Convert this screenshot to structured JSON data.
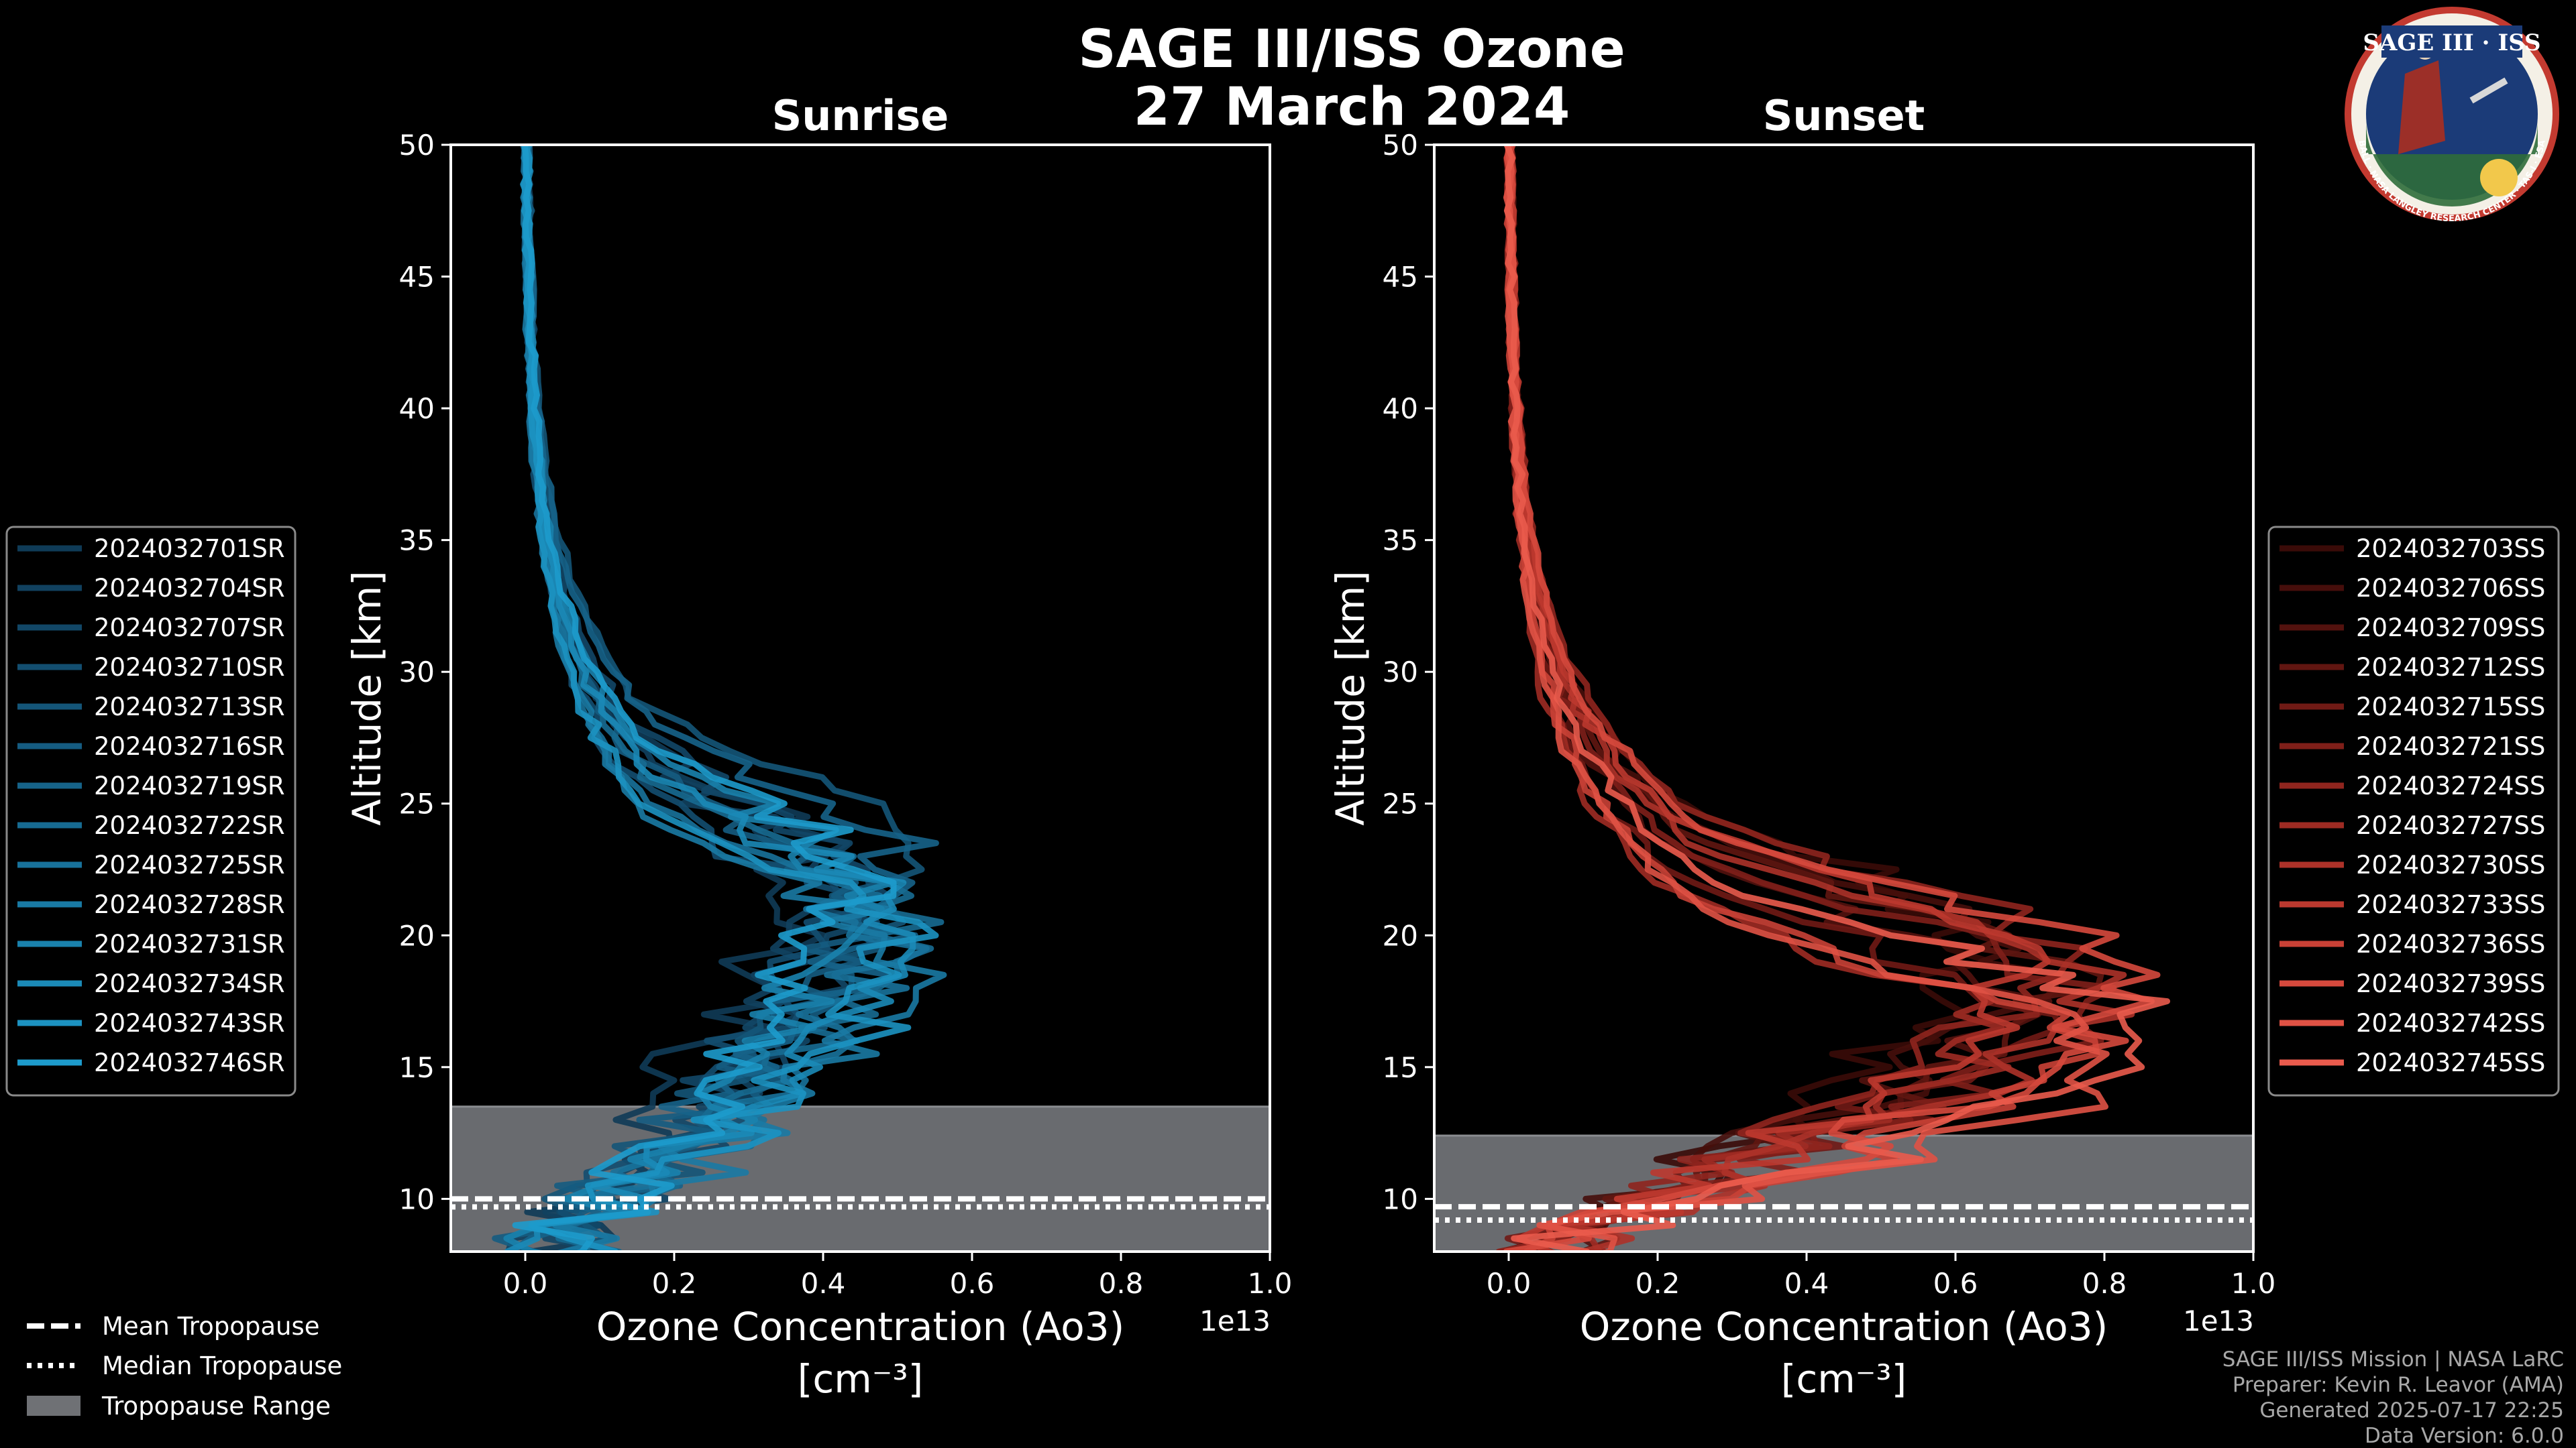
{
  "chart_data": {
    "type": "line",
    "title": [
      "SAGE III/ISS Ozone",
      "27 March 2024"
    ],
    "logo": {
      "top": "SAGE III · ISS",
      "ring": "BALL · NASA LANGLEY RESEARCH CENTER · TAS-I · ESA"
    },
    "panels": [
      {
        "title": "Sunrise",
        "xlabel": "Ozone Concentration (Ao3)",
        "xunits": "[cm⁻³]",
        "ylabel": "Altitude [km]",
        "xlim": [
          -0.1,
          1.0
        ],
        "ylim": [
          8,
          50
        ],
        "xticks": [
          0.0,
          0.2,
          0.4,
          0.6,
          0.8,
          1.0
        ],
        "xtick_labels": [
          "0.0",
          "0.2",
          "0.4",
          "0.6",
          "0.8",
          "1.0"
        ],
        "yticks": [
          10,
          15,
          20,
          25,
          30,
          35,
          40,
          45,
          50
        ],
        "offset_label": "1e13",
        "tropopause": {
          "mean": 10.0,
          "median": 10.0,
          "range": [
            8.0,
            13.5
          ]
        },
        "series": [
          {
            "name": "2024032701SR",
            "color": "#0f3b57",
            "peak": 0.36,
            "peak_alt": 22.5,
            "seed": 1
          },
          {
            "name": "2024032704SR",
            "color": "#11415f",
            "peak": 0.42,
            "peak_alt": 21.5,
            "seed": 2
          },
          {
            "name": "2024032707SR",
            "color": "#124767",
            "peak": 0.46,
            "peak_alt": 22.0,
            "seed": 3
          },
          {
            "name": "2024032710SR",
            "color": "#134e70",
            "peak": 0.4,
            "peak_alt": 20.5,
            "seed": 4
          },
          {
            "name": "2024032713SR",
            "color": "#145578",
            "peak": 0.48,
            "peak_alt": 23.0,
            "seed": 5
          },
          {
            "name": "2024032716SR",
            "color": "#155c81",
            "peak": 0.44,
            "peak_alt": 21.0,
            "seed": 6
          },
          {
            "name": "2024032719SR",
            "color": "#166389",
            "peak": 0.5,
            "peak_alt": 22.5,
            "seed": 7
          },
          {
            "name": "2024032722SR",
            "color": "#176b92",
            "peak": 0.52,
            "peak_alt": 20.0,
            "seed": 8
          },
          {
            "name": "2024032725SR",
            "color": "#18729b",
            "peak": 0.47,
            "peak_alt": 19.5,
            "seed": 9
          },
          {
            "name": "2024032728SR",
            "color": "#197aa4",
            "peak": 0.53,
            "peak_alt": 18.5,
            "seed": 10
          },
          {
            "name": "2024032731SR",
            "color": "#1a82ad",
            "peak": 0.45,
            "peak_alt": 21.5,
            "seed": 11
          },
          {
            "name": "2024032734SR",
            "color": "#1b8ab7",
            "peak": 0.49,
            "peak_alt": 20.5,
            "seed": 12
          },
          {
            "name": "2024032743SR",
            "color": "#1c92c1",
            "peak": 0.51,
            "peak_alt": 19.0,
            "seed": 13
          },
          {
            "name": "2024032746SR",
            "color": "#1d9bcc",
            "peak": 0.43,
            "peak_alt": 22.0,
            "seed": 14
          }
        ]
      },
      {
        "title": "Sunset",
        "xlabel": "Ozone Concentration (Ao3)",
        "xunits": "[cm⁻³]",
        "ylabel": "Altitude [km]",
        "xlim": [
          -0.1,
          1.0
        ],
        "ylim": [
          8,
          50
        ],
        "xticks": [
          0.0,
          0.2,
          0.4,
          0.6,
          0.8,
          1.0
        ],
        "xtick_labels": [
          "0.0",
          "0.2",
          "0.4",
          "0.6",
          "0.8",
          "1.0"
        ],
        "yticks": [
          10,
          15,
          20,
          25,
          30,
          35,
          40,
          45,
          50
        ],
        "offset_label": "1e13",
        "tropopause": {
          "mean": 9.7,
          "median": 9.5,
          "range": [
            8.0,
            12.4
          ]
        },
        "series": [
          {
            "name": "2024032703SS",
            "color": "#3a0b08",
            "peak": 0.62,
            "peak_alt": 19.5,
            "seed": 21
          },
          {
            "name": "2024032706SS",
            "color": "#460e0b",
            "peak": 0.7,
            "peak_alt": 18.5,
            "seed": 22
          },
          {
            "name": "2024032709SS",
            "color": "#53120e",
            "peak": 0.66,
            "peak_alt": 17.5,
            "seed": 23
          },
          {
            "name": "2024032712SS",
            "color": "#611611",
            "peak": 0.74,
            "peak_alt": 18.0,
            "seed": 24
          },
          {
            "name": "2024032715SS",
            "color": "#701a15",
            "peak": 0.68,
            "peak_alt": 16.5,
            "seed": 25
          },
          {
            "name": "2024032721SS",
            "color": "#7f1f19",
            "peak": 0.78,
            "peak_alt": 17.0,
            "seed": 26
          },
          {
            "name": "2024032724SS",
            "color": "#8f251e",
            "peak": 0.72,
            "peak_alt": 19.0,
            "seed": 27
          },
          {
            "name": "2024032727SS",
            "color": "#9e2b23",
            "peak": 0.64,
            "peak_alt": 16.0,
            "seed": 28
          },
          {
            "name": "2024032730SS",
            "color": "#ad3229",
            "peak": 0.8,
            "peak_alt": 17.5,
            "seed": 29
          },
          {
            "name": "2024032733SS",
            "color": "#bc392f",
            "peak": 0.7,
            "peak_alt": 18.5,
            "seed": 30
          },
          {
            "name": "2024032736SS",
            "color": "#c94136",
            "peak": 0.76,
            "peak_alt": 15.5,
            "seed": 31
          },
          {
            "name": "2024032739SS",
            "color": "#d6493d",
            "peak": 0.86,
            "peak_alt": 18.0,
            "seed": 32
          },
          {
            "name": "2024032742SS",
            "color": "#e05245",
            "peak": 0.82,
            "peak_alt": 15.0,
            "seed": 33
          },
          {
            "name": "2024032745SS",
            "color": "#ea5b4d",
            "peak": 0.88,
            "peak_alt": 16.0,
            "seed": 34
          }
        ]
      }
    ],
    "tropopause_legend": [
      "Mean Tropopause",
      "Median Tropopause",
      "Tropopause Range"
    ],
    "footer": [
      "SAGE III/ISS Mission | NASA LaRC",
      "Preparer: Kevin R. Leavor (AMA)",
      "Generated 2025-07-17 22:25",
      "Data Version: 6.0.0"
    ]
  }
}
